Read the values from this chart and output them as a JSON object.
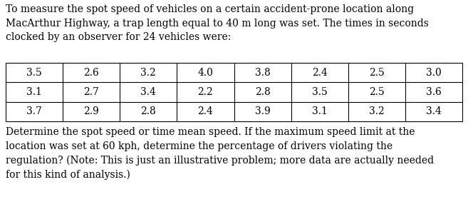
{
  "intro_text": "To measure the spot speed of vehicles on a certain accident-prone location along\nMacArthur Highway, a trap length equal to 40 m long was set. The times in seconds\nclocked by an observer for 24 vehicles were:",
  "table_data": [
    [
      "3.5",
      "2.6",
      "3.2",
      "4.0",
      "3.8",
      "2.4",
      "2.5",
      "3.0"
    ],
    [
      "3.1",
      "2.7",
      "3.4",
      "2.2",
      "2.8",
      "3.5",
      "2.5",
      "3.6"
    ],
    [
      "3.7",
      "2.9",
      "2.8",
      "2.4",
      "3.9",
      "3.1",
      "3.2",
      "3.4"
    ]
  ],
  "outro_text": "Determine the spot speed or time mean speed. If the maximum speed limit at the\nlocation was set at 60 kph, determine the percentage of drivers violating the\nregulation? (Note: This is just an illustrative problem; more data are actually needed\nfor this kind of analysis.)",
  "font_family": "DejaVu Serif",
  "font_size": 10.0,
  "text_color": "#000000",
  "bg_color": "#ffffff",
  "fig_width": 6.57,
  "fig_height": 2.76,
  "dpi": 100
}
